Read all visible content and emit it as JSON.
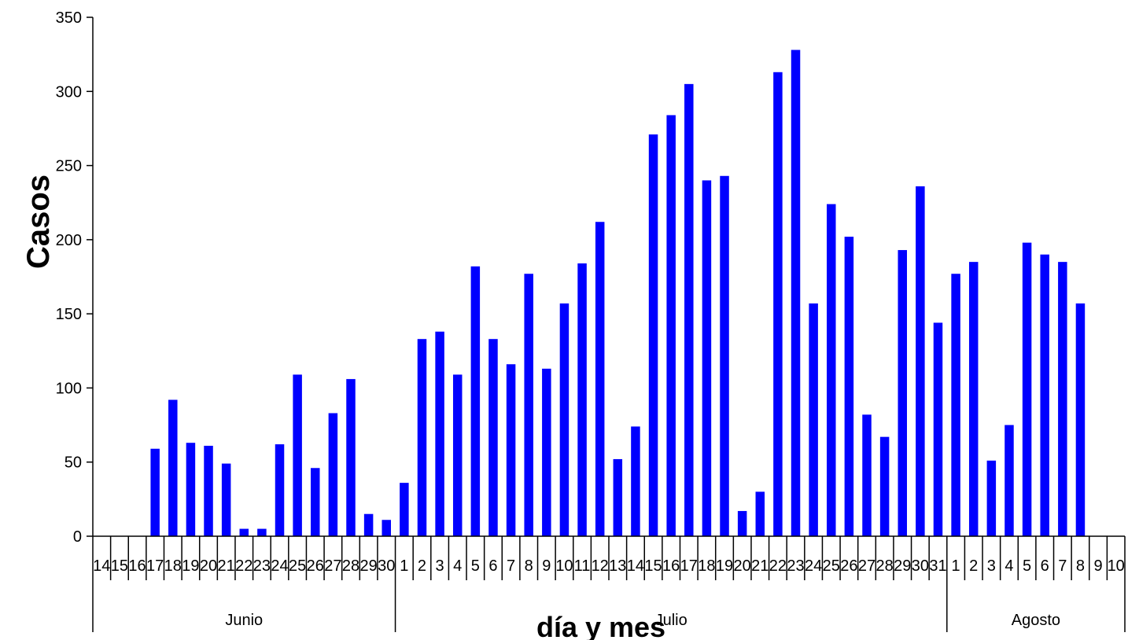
{
  "chart_data": {
    "type": "bar",
    "title": "",
    "ylabel": "Casos",
    "xlabel": "día y mes",
    "ylim": [
      0,
      350
    ],
    "y_ticks": [
      0,
      50,
      100,
      150,
      200,
      250,
      300,
      350
    ],
    "grid": false,
    "legend": "none",
    "bar_color": "#0000FF",
    "groups": [
      {
        "name": "Junio",
        "days": [
          "14",
          "15",
          "16",
          "17",
          "18",
          "19",
          "20",
          "21",
          "22",
          "23",
          "24",
          "25",
          "26",
          "27",
          "28",
          "29",
          "30"
        ]
      },
      {
        "name": "Julio",
        "days": [
          "1",
          "2",
          "3",
          "4",
          "5",
          "6",
          "7",
          "8",
          "9",
          "10",
          "11",
          "12",
          "13",
          "14",
          "15",
          "16",
          "17",
          "18",
          "19",
          "20",
          "21",
          "22",
          "23",
          "24",
          "25",
          "26",
          "27",
          "28",
          "29",
          "30",
          "31"
        ]
      },
      {
        "name": "Agosto",
        "days": [
          "1",
          "2",
          "3",
          "4",
          "5",
          "6",
          "7",
          "8",
          "9",
          "10"
        ]
      }
    ],
    "categories": [
      "14",
      "15",
      "16",
      "17",
      "18",
      "19",
      "20",
      "21",
      "22",
      "23",
      "24",
      "25",
      "26",
      "27",
      "28",
      "29",
      "30",
      "1",
      "2",
      "3",
      "4",
      "5",
      "6",
      "7",
      "8",
      "9",
      "10",
      "11",
      "12",
      "13",
      "14",
      "15",
      "16",
      "17",
      "18",
      "19",
      "20",
      "21",
      "22",
      "23",
      "24",
      "25",
      "26",
      "27",
      "28",
      "29",
      "30",
      "31",
      "1",
      "2",
      "3",
      "4",
      "5",
      "6",
      "7",
      "8",
      "9",
      "10"
    ],
    "values": [
      0,
      0,
      0,
      59,
      92,
      63,
      61,
      49,
      5,
      5,
      62,
      109,
      46,
      83,
      106,
      15,
      11,
      36,
      133,
      138,
      109,
      182,
      133,
      116,
      177,
      113,
      157,
      184,
      212,
      52,
      74,
      271,
      284,
      305,
      240,
      243,
      17,
      30,
      313,
      328,
      157,
      224,
      202,
      82,
      67,
      193,
      236,
      144,
      177,
      185,
      51,
      75,
      198,
      190,
      185,
      157,
      0,
      0
    ]
  }
}
